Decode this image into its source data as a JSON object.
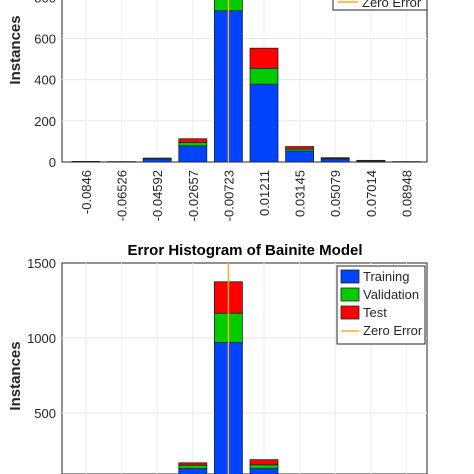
{
  "chart_data": [
    {
      "type": "bar",
      "title": "",
      "ylabel": "Instances",
      "xlabel": "",
      "ylim": [
        0,
        800
      ],
      "yticks": [
        0,
        200,
        400,
        600,
        800
      ],
      "ytick_labels": [
        "0",
        "200",
        "400",
        "600",
        "800"
      ],
      "grid": true,
      "categories": [
        "-0.0846",
        "-0.06526",
        "-0.04592",
        "-0.02657",
        "-0.00723",
        "0.01211",
        "0.03145",
        "0.05079",
        "0.07014",
        "0.08948"
      ],
      "series": [
        {
          "name": "Training",
          "color": "#0044ff",
          "values": [
            3,
            2,
            15,
            78,
            735,
            378,
            53,
            14,
            5,
            2
          ]
        },
        {
          "name": "Validation",
          "color": "#00cc00",
          "values": [
            0,
            0,
            2,
            17,
            120,
            77,
            10,
            3,
            1,
            0
          ]
        },
        {
          "name": "Test",
          "color": "#ff0000",
          "values": [
            0,
            0,
            2,
            18,
            100,
            98,
            12,
            4,
            2,
            0
          ]
        }
      ],
      "zero_error": {
        "name": "Zero Error",
        "color": "#ffaa22",
        "x_category_index": 4
      },
      "legend_visible": [
        "Zero Error"
      ],
      "legend_position": "top-right"
    },
    {
      "type": "bar",
      "title": "Error Histogram of Bainite Model",
      "ylabel": "Instances",
      "xlabel": "",
      "ylim": [
        0,
        1500
      ],
      "yticks": [
        500,
        1000,
        1500
      ],
      "ytick_labels": [
        "500",
        "1000",
        "1500"
      ],
      "grid": true,
      "categories": [
        "",
        "",
        "",
        "",
        "",
        "",
        "",
        "",
        "",
        ""
      ],
      "series": [
        {
          "name": "Training",
          "color": "#0044ff",
          "values": [
            0,
            0,
            0,
            130,
            970,
            130,
            0,
            0,
            0,
            0
          ]
        },
        {
          "name": "Validation",
          "color": "#00cc00",
          "values": [
            0,
            0,
            0,
            22,
            195,
            25,
            0,
            0,
            0,
            0
          ]
        },
        {
          "name": "Test",
          "color": "#ff0000",
          "values": [
            0,
            0,
            0,
            16,
            210,
            34,
            0,
            0,
            0,
            0
          ]
        }
      ],
      "zero_error": {
        "name": "Zero Error",
        "color": "#ffaa22",
        "x_category_index": 4
      },
      "legend_visible": [
        "Training",
        "Validation",
        "Test",
        "Zero Error"
      ],
      "legend_position": "top-right"
    }
  ]
}
